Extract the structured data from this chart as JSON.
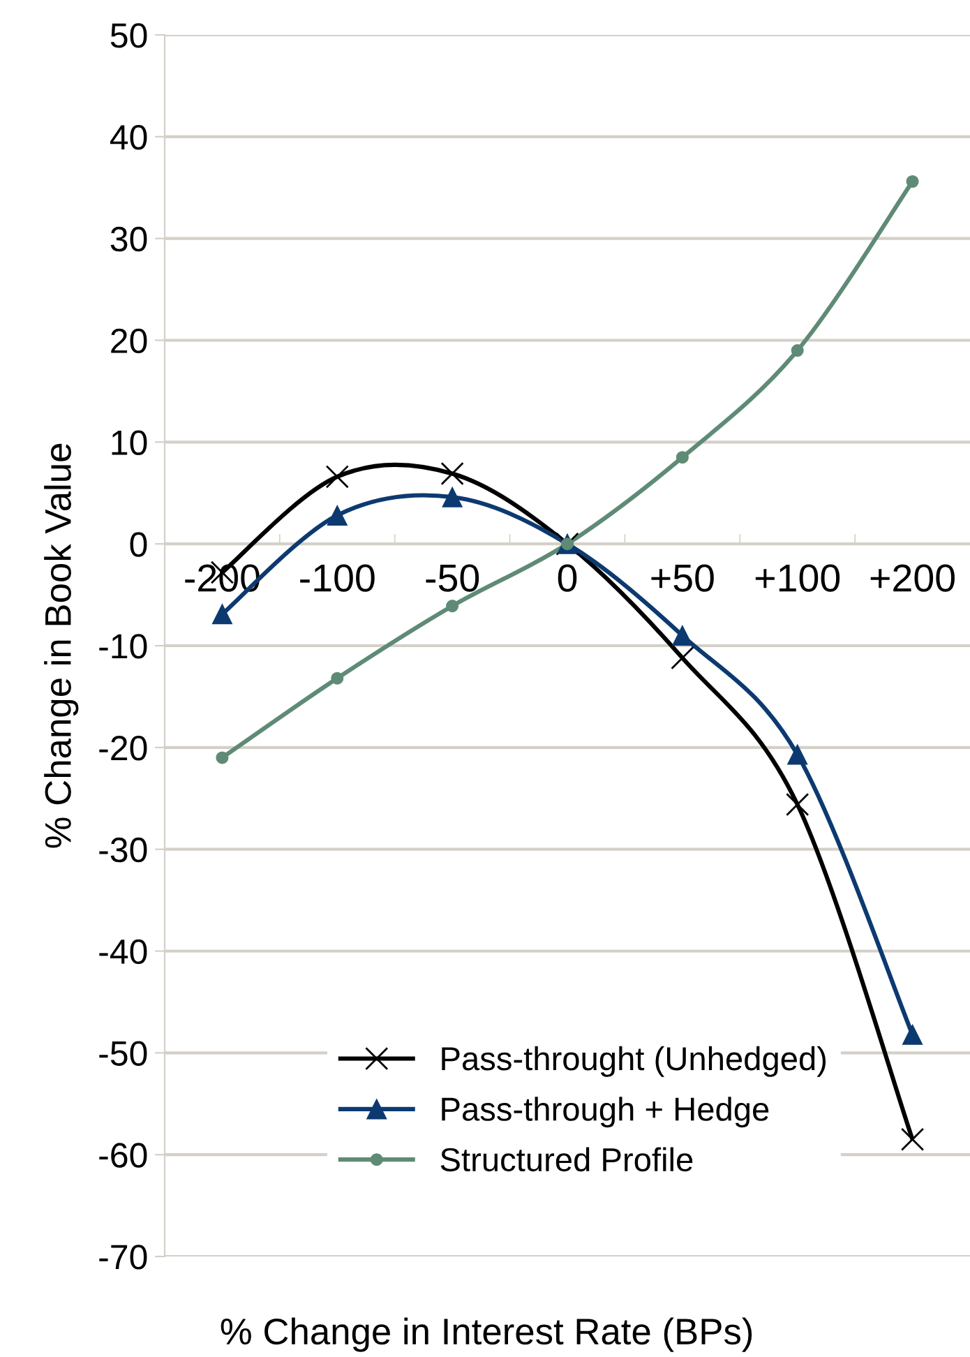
{
  "chart_data": {
    "type": "line",
    "xlabel": "% Change in Interest Rate (BPs)",
    "ylabel": "% Change in Book Value",
    "categories": [
      "-200",
      "-100",
      "-50",
      "0",
      "+50",
      "+100",
      "+200"
    ],
    "series": [
      {
        "name": "Pass-throught (Unhedged)",
        "color": "#000000",
        "marker": "cross",
        "values": [
          -2.8,
          6.6,
          6.9,
          0,
          -11.2,
          -25.6,
          -58.5
        ]
      },
      {
        "name": "Pass-through + Hedge",
        "color": "#0c3a70",
        "marker": "triangle",
        "values": [
          -6.9,
          2.8,
          4.6,
          0,
          -9.0,
          -20.7,
          -48.2
        ]
      },
      {
        "name": "Structured Profile",
        "color": "#5f8b76",
        "marker": "circle",
        "values": [
          -21.0,
          -13.2,
          -6.1,
          0,
          8.5,
          19.0,
          35.6
        ]
      }
    ],
    "ylim": [
      -70,
      50
    ],
    "yticks": [
      -70,
      -60,
      -50,
      -40,
      -30,
      -20,
      -10,
      0,
      10,
      20,
      30,
      40,
      50
    ],
    "grid": "y",
    "legend": "bottom right",
    "line_style": "solid"
  }
}
